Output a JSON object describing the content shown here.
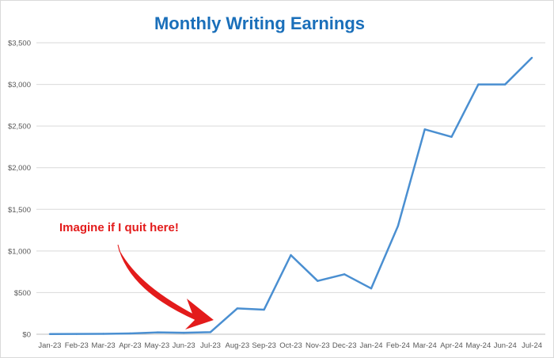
{
  "chart_data": {
    "type": "line",
    "title": "Monthly Writing Earnings",
    "xlabel": "",
    "ylabel": "",
    "categories": [
      "Jan-23",
      "Feb-23",
      "Mar-23",
      "Apr-23",
      "May-23",
      "Jun-23",
      "Jul-23",
      "Aug-23",
      "Sep-23",
      "Oct-23",
      "Nov-23",
      "Dec-23",
      "Jan-24",
      "Feb-24",
      "Mar-24",
      "Apr-24",
      "May-24",
      "Jun-24",
      "Jul-24"
    ],
    "series": [
      {
        "values": [
          2,
          3,
          5,
          10,
          22,
          18,
          25,
          310,
          295,
          950,
          640,
          720,
          550,
          1300,
          2460,
          2370,
          3000,
          3000,
          3320
        ]
      }
    ],
    "ylim": [
      0,
      3500
    ],
    "yticks": [
      0,
      500,
      1000,
      1500,
      2000,
      2500,
      3000,
      3500
    ],
    "ytick_labels": [
      "$0",
      "$500",
      "$1,000",
      "$1,500",
      "$2,000",
      "$2,500",
      "$3,000",
      "$3,500"
    ],
    "grid": true,
    "legend": "none",
    "line_color": "#4a8fd1",
    "annotation": {
      "text": "Imagine if I quit here!",
      "color": "#e31b1b",
      "points_to": "Jul-23"
    }
  }
}
